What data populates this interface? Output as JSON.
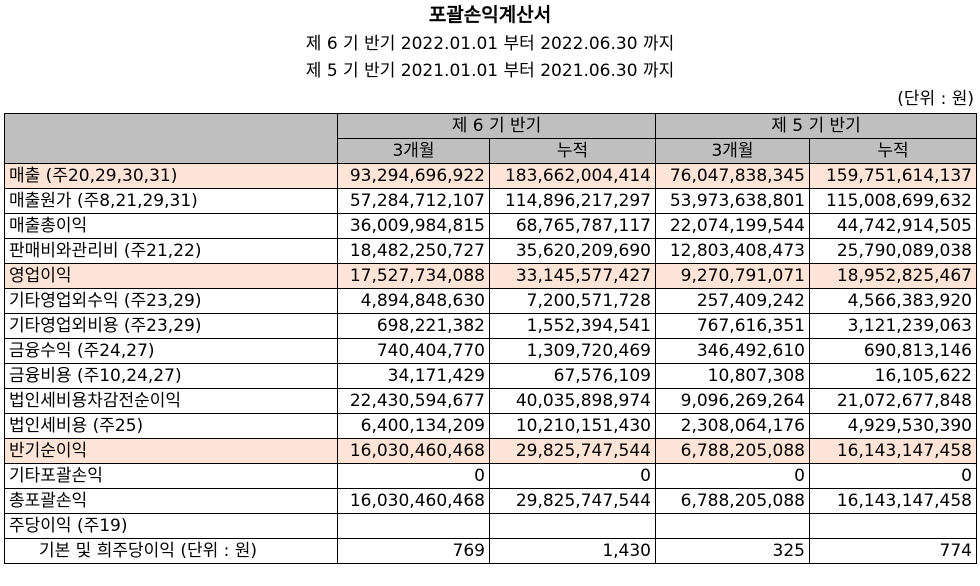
{
  "header": {
    "title": "포괄손익계산서",
    "period_current": "제 6 기 반기 2022.01.01 부터 2022.06.30 까지",
    "period_prior": "제 5 기 반기 2021.01.01 부터 2021.06.30 까지",
    "unit": "(단위 : 원)"
  },
  "table": {
    "group_current": "제 6 기 반기",
    "group_prior": "제 5 기 반기",
    "sub_3m": "3개월",
    "sub_cum": "누적",
    "rows": [
      {
        "label": "매출 (주20,29,30,31)",
        "c3": "93,294,696,922",
        "ccum": "183,662,004,414",
        "p3": "76,047,838,345",
        "pcum": "159,751,614,137"
      },
      {
        "label": "매출원가 (주8,21,29,31)",
        "c3": "57,284,712,107",
        "ccum": "114,896,217,297",
        "p3": "53,973,638,801",
        "pcum": "115,008,699,632"
      },
      {
        "label": "매출총이익",
        "c3": "36,009,984,815",
        "ccum": "68,765,787,117",
        "p3": "22,074,199,544",
        "pcum": "44,742,914,505"
      },
      {
        "label": "판매비와관리비 (주21,22)",
        "c3": "18,482,250,727",
        "ccum": "35,620,209,690",
        "p3": "12,803,408,473",
        "pcum": "25,790,089,038"
      },
      {
        "label": "영업이익",
        "c3": "17,527,734,088",
        "ccum": "33,145,577,427",
        "p3": "9,270,791,071",
        "pcum": "18,952,825,467"
      },
      {
        "label": "기타영업외수익 (주23,29)",
        "c3": "4,894,848,630",
        "ccum": "7,200,571,728",
        "p3": "257,409,242",
        "pcum": "4,566,383,920"
      },
      {
        "label": "기타영업외비용 (주23,29)",
        "c3": "698,221,382",
        "ccum": "1,552,394,541",
        "p3": "767,616,351",
        "pcum": "3,121,239,063"
      },
      {
        "label": "금융수익 (주24,27)",
        "c3": "740,404,770",
        "ccum": "1,309,720,469",
        "p3": "346,492,610",
        "pcum": "690,813,146"
      },
      {
        "label": "금융비용 (주10,24,27)",
        "c3": "34,171,429",
        "ccum": "67,576,109",
        "p3": "10,807,308",
        "pcum": "16,105,622"
      },
      {
        "label": "법인세비용차감전순이익",
        "c3": "22,430,594,677",
        "ccum": "40,035,898,974",
        "p3": "9,096,269,264",
        "pcum": "21,072,677,848"
      },
      {
        "label": "법인세비용 (주25)",
        "c3": "6,400,134,209",
        "ccum": "10,210,151,430",
        "p3": "2,308,064,176",
        "pcum": "4,929,530,390"
      },
      {
        "label": "반기순이익",
        "c3": "16,030,460,468",
        "ccum": "29,825,747,544",
        "p3": "6,788,205,088",
        "pcum": "16,143,147,458"
      },
      {
        "label": "기타포괄손익",
        "c3": "0",
        "ccum": "0",
        "p3": "0",
        "pcum": "0"
      },
      {
        "label": "총포괄손익",
        "c3": "16,030,460,468",
        "ccum": "29,825,747,544",
        "p3": "6,788,205,088",
        "pcum": "16,143,147,458"
      },
      {
        "label": "주당이익 (주19)",
        "c3": "",
        "ccum": "",
        "p3": "",
        "pcum": ""
      },
      {
        "label": "기본 및 희주당이익 (단위 : 원)",
        "c3": "769",
        "ccum": "1,430",
        "p3": "325",
        "pcum": "774"
      }
    ]
  }
}
